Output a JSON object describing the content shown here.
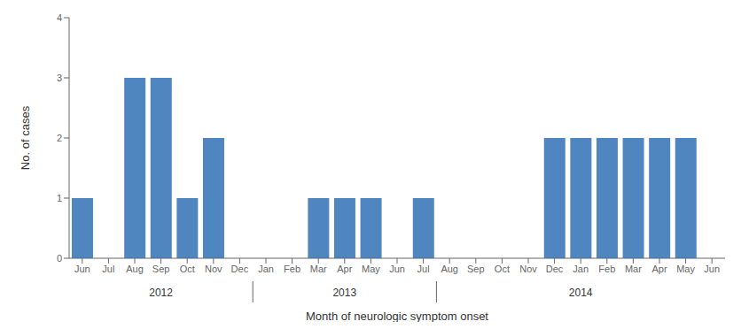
{
  "chart_data": {
    "type": "bar",
    "categories": [
      "Jun",
      "Jul",
      "Aug",
      "Sep",
      "Oct",
      "Nov",
      "Dec",
      "Jan",
      "Feb",
      "Mar",
      "Apr",
      "May",
      "Jun",
      "Jul",
      "Aug",
      "Sep",
      "Oct",
      "Nov",
      "Dec",
      "Jan",
      "Feb",
      "Mar",
      "Apr",
      "May",
      "Jun"
    ],
    "values": [
      1,
      0,
      3,
      3,
      1,
      2,
      0,
      0,
      0,
      1,
      1,
      1,
      0,
      1,
      0,
      0,
      0,
      0,
      2,
      2,
      2,
      2,
      2,
      2,
      0
    ],
    "color": "#4f86c0",
    "ylabel": "No. of cases",
    "xlabel": "Month of neurologic symptom onset",
    "ylim": [
      0,
      4
    ],
    "yticks": [
      0,
      1,
      2,
      3,
      4
    ],
    "grid": false,
    "annotations": [
      {
        "text": "2012",
        "start": 0,
        "end": 6
      },
      {
        "text": "2013",
        "start": 7,
        "end": 13
      },
      {
        "text": "2014",
        "start": 14,
        "end": 24
      }
    ]
  }
}
